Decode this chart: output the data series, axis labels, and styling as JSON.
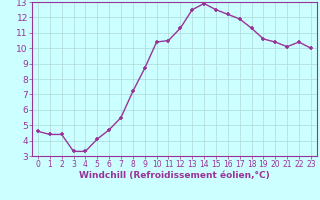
{
  "x": [
    0,
    1,
    2,
    3,
    4,
    5,
    6,
    7,
    8,
    9,
    10,
    11,
    12,
    13,
    14,
    15,
    16,
    17,
    18,
    19,
    20,
    21,
    22,
    23
  ],
  "y": [
    4.6,
    4.4,
    4.4,
    3.3,
    3.3,
    4.1,
    4.7,
    5.5,
    7.2,
    8.7,
    10.4,
    10.5,
    11.3,
    12.5,
    12.9,
    12.5,
    12.2,
    11.9,
    11.3,
    10.6,
    10.4,
    10.1,
    10.4,
    10.0
  ],
  "line_color": "#993399",
  "marker": "+",
  "bg_color": "#ccffff",
  "grid_color": "#b0d8d8",
  "xlabel": "Windchill (Refroidissement éolien,°C)",
  "ylim": [
    3,
    13
  ],
  "xlim": [
    -0.5,
    23.5
  ],
  "yticks": [
    3,
    4,
    5,
    6,
    7,
    8,
    9,
    10,
    11,
    12,
    13
  ],
  "xticks": [
    0,
    1,
    2,
    3,
    4,
    5,
    6,
    7,
    8,
    9,
    10,
    11,
    12,
    13,
    14,
    15,
    16,
    17,
    18,
    19,
    20,
    21,
    22,
    23
  ],
  "tick_color": "#993399",
  "label_color": "#993399",
  "xlabel_fontsize": 6.5,
  "ytick_fontsize": 6.5,
  "xtick_fontsize": 5.5,
  "linewidth": 1.0,
  "markersize": 3.5,
  "spine_color": "#993399"
}
